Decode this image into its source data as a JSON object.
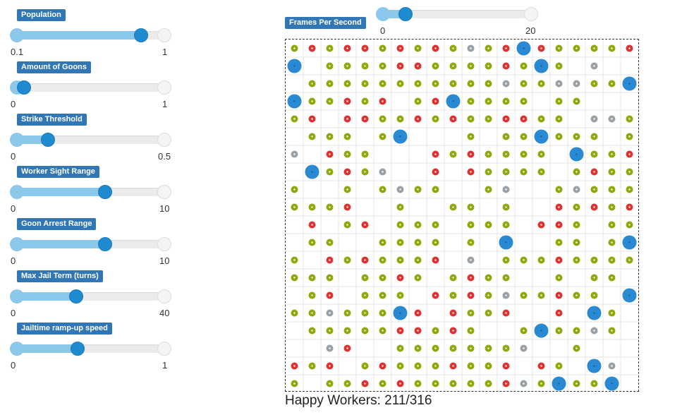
{
  "sliders": [
    {
      "label": "Population",
      "min": "0.1",
      "max": "1",
      "fraction": 0.84
    },
    {
      "label": "Amount of Goons",
      "min": "0",
      "max": "1",
      "fraction": 0.05
    },
    {
      "label": "Strike Threshold",
      "min": "0",
      "max": "0.5",
      "fraction": 0.21
    },
    {
      "label": "Worker Sight Range",
      "min": "0",
      "max": "10",
      "fraction": 0.6
    },
    {
      "label": "Goon Arrest Range",
      "min": "0",
      "max": "10",
      "fraction": 0.6
    },
    {
      "label": "Max Jail Term (turns)",
      "min": "0",
      "max": "40",
      "fraction": 0.4
    },
    {
      "label": "Jailtime ramp-up speed",
      "min": "0",
      "max": "1",
      "fraction": 0.41
    }
  ],
  "fps": {
    "label": "Frames Per Second",
    "min": "0",
    "max": "20",
    "fraction": 0.15
  },
  "status_text": "Happy Workers: 211/316",
  "colors": {
    "happy": "#8ea90c",
    "striking": "#e03131",
    "jailed": "#9aa1a6",
    "goon": "#2a89d3",
    "badge": "#3277b5",
    "slider_fill": "#8bc8ea",
    "handle": "#1e8ad0"
  },
  "grid_rows": [
    "hshsshshshghsGshhhhs",
    "G.hhhhsshhhhshGh.g.",
    ".hhhhhhhhhhhghhgghhG",
    "Ghhshs.hsGhhhh.hh..",
    "hs.sshhshshhsshh.ggh",
    ".hhh.hG...h.hhGhhh.h",
    "g.shh...shshhhh.Ghhs",
    ".Ghshg..s.shhhh.hshh",
    "h..h.hghh..hg..hghhh",
    "hhhs..h..hh.h..shshs",
    ".s.hs.hhh.hhh.ssh.hh",
    ".hh..hhhh.h.G..hh.hG",
    "h.shshhhs.g.hhhshhhh",
    "hhh.hhsh.hshh..h.hh",
    ".hs.hhh.shshghhshh.G",
    "hhghhhGs.shhs..s.Gh.G",
    ".hhhhhsshsh..hGhhgh",
    "..gs..hhhhhhhg..h..",
    "shs.hshhhshhs.sh.Gg",
    "h.hhshshhhhhsghGhhG"
  ]
}
